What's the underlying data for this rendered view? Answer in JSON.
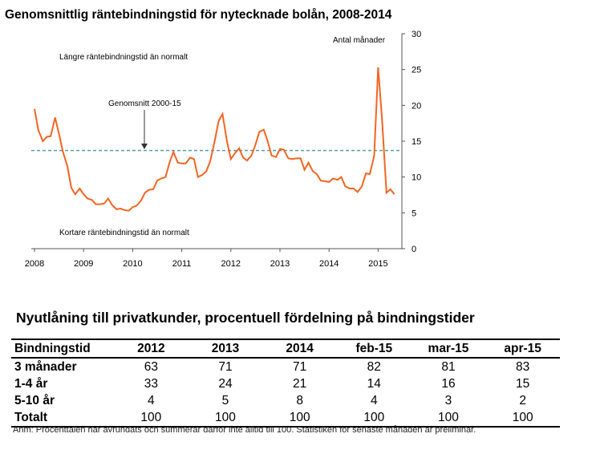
{
  "chart_data": {
    "type": "line",
    "title": "Genomsnittlig räntebindningstid för nytecknade bolån, 2008-2014",
    "y_axis_label": "Antal månader",
    "ylim": [
      0,
      30
    ],
    "yticks": [
      "0",
      "5",
      "10",
      "15",
      "20",
      "25",
      "30"
    ],
    "xlim": [
      2008.0,
      2015.4
    ],
    "xticks": [
      "2008",
      "2009",
      "2010",
      "2011",
      "2012",
      "2013",
      "2014",
      "2015"
    ],
    "annotations": {
      "above": "Längre räntebindningstid än normalt",
      "below": "Kortare räntebindningstid än normalt",
      "average_label": "Genomsnitt 2000-15"
    },
    "average": 13.7,
    "line_color": "#f26522",
    "average_color": "#5b9e9e",
    "series": [
      {
        "x": [
          2008.0,
          2008.08,
          2008.17,
          2008.25,
          2008.33,
          2008.42,
          2008.5,
          2008.58,
          2008.67,
          2008.75,
          2008.83,
          2008.92,
          2009.0,
          2009.08,
          2009.17,
          2009.25,
          2009.33,
          2009.42,
          2009.5,
          2009.58,
          2009.67,
          2009.75,
          2009.83,
          2009.92,
          2010.0,
          2010.08,
          2010.17,
          2010.25,
          2010.33,
          2010.42,
          2010.5,
          2010.58,
          2010.67,
          2010.75,
          2010.83,
          2010.92,
          2011.0,
          2011.08,
          2011.17,
          2011.25,
          2011.33,
          2011.42,
          2011.5,
          2011.58,
          2011.67,
          2011.75,
          2011.83,
          2011.92,
          2012.0,
          2012.08,
          2012.17,
          2012.25,
          2012.33,
          2012.42,
          2012.5,
          2012.58,
          2012.67,
          2012.75,
          2012.83,
          2012.92,
          2013.0,
          2013.08,
          2013.17,
          2013.25,
          2013.33,
          2013.42,
          2013.5,
          2013.58,
          2013.67,
          2013.75,
          2013.83,
          2013.92,
          2014.0,
          2014.08,
          2014.17,
          2014.25,
          2014.33,
          2014.42,
          2014.5,
          2014.58,
          2014.67,
          2014.75,
          2014.83,
          2014.92,
          2015.0,
          2015.08,
          2015.17,
          2015.25,
          2015.33
        ],
        "values": [
          19.5,
          16.5,
          15.0,
          15.6,
          15.7,
          18.3,
          16.0,
          13.5,
          11.5,
          8.5,
          7.6,
          8.4,
          7.6,
          7.0,
          6.8,
          6.2,
          6.2,
          6.3,
          7.0,
          6.1,
          5.5,
          5.6,
          5.4,
          5.3,
          5.8,
          6.0,
          6.7,
          7.8,
          8.2,
          8.3,
          9.5,
          9.8,
          10.0,
          12.0,
          13.5,
          12.0,
          11.9,
          11.9,
          12.7,
          12.5,
          10.0,
          10.3,
          10.8,
          12.2,
          15.0,
          17.8,
          18.8,
          15.0,
          12.5,
          13.3,
          14.0,
          12.7,
          12.3,
          13.0,
          14.5,
          16.3,
          16.6,
          15.0,
          13.0,
          12.8,
          13.9,
          13.8,
          12.6,
          12.5,
          12.6,
          12.6,
          11.0,
          12.0,
          10.8,
          10.4,
          9.5,
          9.4,
          9.3,
          9.8,
          9.6,
          10.0,
          8.7,
          8.4,
          8.4,
          7.9,
          8.7,
          10.5,
          10.4,
          13.0,
          25.3,
          18.0,
          7.8,
          8.3,
          7.6
        ]
      }
    ]
  },
  "table": {
    "title": "Nyutlåning till privatkunder, procentuell fördelning på bindningstider",
    "headers": [
      "Bindningstid",
      "2012",
      "2013",
      "2014",
      "feb-15",
      "mar-15",
      "apr-15"
    ],
    "rows": [
      [
        "3 månader",
        "63",
        "71",
        "71",
        "82",
        "81",
        "83"
      ],
      [
        "1-4 år",
        "33",
        "24",
        "21",
        "14",
        "16",
        "15"
      ],
      [
        "5-10 år",
        "4",
        "5",
        "8",
        "4",
        "3",
        "2"
      ],
      [
        "Totalt",
        "100",
        "100",
        "100",
        "100",
        "100",
        "100"
      ]
    ],
    "note": "Anm: Procenttalen har avrundats och summerar därför inte alltid till 100. Statistiken för senaste månaden är preliminär."
  }
}
